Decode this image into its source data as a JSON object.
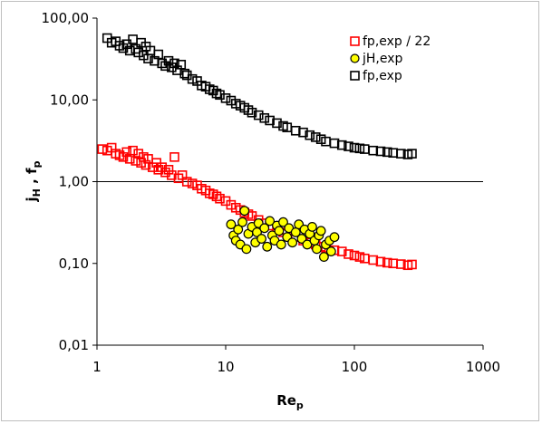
{
  "chart_data": {
    "type": "scatter",
    "title": "",
    "xlabel": "Re",
    "xlabel_sub": "p",
    "ylabel": "j",
    "ylabel_sub1": "H",
    "ylabel_sep": " , ",
    "ylabel2": "f",
    "ylabel_sub2": "p",
    "x_scale": "log",
    "y_scale": "log",
    "xlim": [
      1,
      1000
    ],
    "ylim": [
      0.01,
      100
    ],
    "x_ticks": [
      1,
      10,
      100,
      1000
    ],
    "x_tick_labels": [
      "1",
      "10",
      "100",
      "1000"
    ],
    "y_ticks": [
      0.01,
      0.1,
      1,
      10,
      100
    ],
    "y_tick_labels": [
      "0,01",
      "0,10",
      "1,00",
      "10,00",
      "100,00"
    ],
    "grid": false,
    "reference_line_y": 1,
    "legend_position": "top-right",
    "series": [
      {
        "name": "fp,exp / 22",
        "marker": "square-open",
        "color": "#ff0000",
        "points": [
          [
            1.1,
            2.5
          ],
          [
            1.2,
            2.4
          ],
          [
            1.3,
            2.6
          ],
          [
            1.4,
            2.2
          ],
          [
            1.5,
            2.1
          ],
          [
            1.6,
            2.0
          ],
          [
            1.7,
            2.3
          ],
          [
            1.8,
            1.9
          ],
          [
            1.9,
            2.4
          ],
          [
            2.0,
            1.8
          ],
          [
            2.1,
            2.2
          ],
          [
            2.2,
            1.7
          ],
          [
            2.3,
            2.0
          ],
          [
            2.4,
            1.6
          ],
          [
            2.5,
            1.9
          ],
          [
            2.7,
            1.5
          ],
          [
            2.9,
            1.7
          ],
          [
            3.0,
            1.4
          ],
          [
            3.2,
            1.5
          ],
          [
            3.4,
            1.3
          ],
          [
            3.6,
            1.4
          ],
          [
            3.8,
            1.2
          ],
          [
            4.0,
            2.0
          ],
          [
            4.3,
            1.1
          ],
          [
            4.6,
            1.2
          ],
          [
            5.0,
            1.0
          ],
          [
            5.5,
            0.95
          ],
          [
            6.0,
            0.9
          ],
          [
            6.5,
            0.82
          ],
          [
            7.0,
            0.78
          ],
          [
            7.5,
            0.72
          ],
          [
            8.0,
            0.7
          ],
          [
            8.5,
            0.66
          ],
          [
            9.0,
            0.62
          ],
          [
            10,
            0.58
          ],
          [
            11,
            0.52
          ],
          [
            12,
            0.48
          ],
          [
            13,
            0.45
          ],
          [
            14,
            0.42
          ],
          [
            15,
            0.4
          ],
          [
            16,
            0.38
          ],
          [
            18,
            0.34
          ],
          [
            20,
            0.31
          ],
          [
            22,
            0.29
          ],
          [
            25,
            0.26
          ],
          [
            28,
            0.24
          ],
          [
            30,
            0.23
          ],
          [
            35,
            0.21
          ],
          [
            40,
            0.19
          ],
          [
            45,
            0.18
          ],
          [
            50,
            0.17
          ],
          [
            55,
            0.16
          ],
          [
            60,
            0.155
          ],
          [
            70,
            0.145
          ],
          [
            80,
            0.14
          ],
          [
            90,
            0.13
          ],
          [
            100,
            0.125
          ],
          [
            110,
            0.12
          ],
          [
            120,
            0.115
          ],
          [
            140,
            0.11
          ],
          [
            160,
            0.105
          ],
          [
            180,
            0.102
          ],
          [
            200,
            0.1
          ],
          [
            230,
            0.098
          ],
          [
            260,
            0.095
          ],
          [
            280,
            0.097
          ]
        ]
      },
      {
        "name": "jH,exp",
        "marker": "circle-filled",
        "color": "#ffff00",
        "edge_color": "#000000",
        "points": [
          [
            11,
            0.3
          ],
          [
            11.5,
            0.22
          ],
          [
            12,
            0.19
          ],
          [
            12.5,
            0.26
          ],
          [
            13,
            0.17
          ],
          [
            13.5,
            0.32
          ],
          [
            14,
            0.44
          ],
          [
            14.5,
            0.15
          ],
          [
            15,
            0.23
          ],
          [
            16,
            0.28
          ],
          [
            17,
            0.18
          ],
          [
            17.5,
            0.24
          ],
          [
            18,
            0.31
          ],
          [
            19,
            0.2
          ],
          [
            20,
            0.27
          ],
          [
            21,
            0.16
          ],
          [
            22,
            0.33
          ],
          [
            23,
            0.22
          ],
          [
            24,
            0.19
          ],
          [
            25,
            0.29
          ],
          [
            26,
            0.25
          ],
          [
            27,
            0.17
          ],
          [
            28,
            0.32
          ],
          [
            30,
            0.21
          ],
          [
            31,
            0.27
          ],
          [
            33,
            0.18
          ],
          [
            35,
            0.24
          ],
          [
            37,
            0.3
          ],
          [
            39,
            0.2
          ],
          [
            41,
            0.26
          ],
          [
            43,
            0.17
          ],
          [
            45,
            0.23
          ],
          [
            47,
            0.28
          ],
          [
            49,
            0.19
          ],
          [
            51,
            0.15
          ],
          [
            53,
            0.22
          ],
          [
            55,
            0.25
          ],
          [
            58,
            0.12
          ],
          [
            60,
            0.17
          ],
          [
            64,
            0.19
          ],
          [
            66,
            0.14
          ],
          [
            70,
            0.21
          ]
        ]
      },
      {
        "name": "fp,exp",
        "marker": "square-open",
        "color": "#000000",
        "points": [
          [
            1.2,
            57
          ],
          [
            1.3,
            50
          ],
          [
            1.4,
            52
          ],
          [
            1.5,
            46
          ],
          [
            1.6,
            43
          ],
          [
            1.7,
            48
          ],
          [
            1.8,
            40
          ],
          [
            1.9,
            55
          ],
          [
            2.0,
            42
          ],
          [
            2.1,
            38
          ],
          [
            2.2,
            50
          ],
          [
            2.3,
            35
          ],
          [
            2.4,
            45
          ],
          [
            2.5,
            32
          ],
          [
            2.6,
            40
          ],
          [
            2.8,
            30
          ],
          [
            3.0,
            36
          ],
          [
            3.2,
            28
          ],
          [
            3.4,
            26
          ],
          [
            3.6,
            30
          ],
          [
            3.8,
            25
          ],
          [
            4.0,
            28
          ],
          [
            4.2,
            23
          ],
          [
            4.5,
            27
          ],
          [
            4.8,
            21
          ],
          [
            5.0,
            20
          ],
          [
            5.5,
            18
          ],
          [
            6.0,
            17
          ],
          [
            6.5,
            15
          ],
          [
            7.0,
            14.5
          ],
          [
            7.5,
            13.5
          ],
          [
            8.0,
            13
          ],
          [
            8.5,
            12
          ],
          [
            9.0,
            11.5
          ],
          [
            10,
            10.5
          ],
          [
            11,
            9.8
          ],
          [
            12,
            9.0
          ],
          [
            13,
            8.5
          ],
          [
            14,
            8.0
          ],
          [
            15,
            7.5
          ],
          [
            16,
            7.0
          ],
          [
            18,
            6.5
          ],
          [
            20,
            6.0
          ],
          [
            22,
            5.6
          ],
          [
            25,
            5.2
          ],
          [
            28,
            4.8
          ],
          [
            30,
            4.6
          ],
          [
            35,
            4.2
          ],
          [
            40,
            4.0
          ],
          [
            45,
            3.7
          ],
          [
            50,
            3.5
          ],
          [
            55,
            3.3
          ],
          [
            60,
            3.1
          ],
          [
            70,
            2.95
          ],
          [
            80,
            2.8
          ],
          [
            90,
            2.7
          ],
          [
            100,
            2.6
          ],
          [
            110,
            2.55
          ],
          [
            120,
            2.5
          ],
          [
            140,
            2.4
          ],
          [
            160,
            2.35
          ],
          [
            180,
            2.3
          ],
          [
            200,
            2.25
          ],
          [
            230,
            2.2
          ],
          [
            260,
            2.15
          ],
          [
            280,
            2.2
          ]
        ]
      }
    ]
  }
}
